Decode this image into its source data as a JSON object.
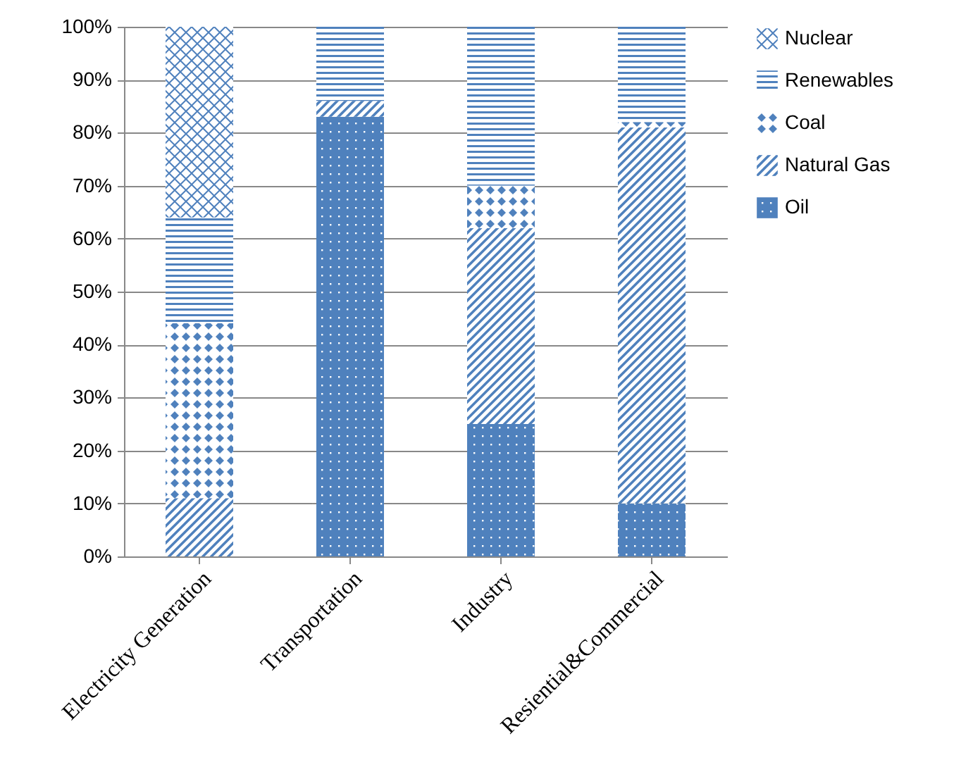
{
  "chart_data": {
    "type": "bar",
    "stacked": true,
    "categories": [
      "Electricity Generation",
      "Transportation",
      "Industry",
      "Resiential&Commercial"
    ],
    "series": [
      {
        "name": "Oil",
        "color": "#4f81bd",
        "values": [
          0,
          83,
          25,
          10
        ]
      },
      {
        "name": "Natural Gas",
        "color": "#4f81bd",
        "values": [
          11,
          3,
          37,
          71
        ]
      },
      {
        "name": "Coal",
        "color": "#4f81bd",
        "values": [
          33,
          0,
          8,
          1
        ]
      },
      {
        "name": "Renewables",
        "color": "#4f81bd",
        "values": [
          20,
          14,
          30,
          18
        ]
      },
      {
        "name": "Nuclear",
        "color": "#4f81bd",
        "values": [
          36,
          0,
          0,
          0
        ]
      }
    ],
    "ylim": [
      0,
      100
    ],
    "yticks": [
      {
        "value": 0,
        "label": "0%"
      },
      {
        "value": 10,
        "label": "10%"
      },
      {
        "value": 20,
        "label": "20%"
      },
      {
        "value": 30,
        "label": "30%"
      },
      {
        "value": 40,
        "label": "40%"
      },
      {
        "value": 50,
        "label": "50%"
      },
      {
        "value": 60,
        "label": "60%"
      },
      {
        "value": 70,
        "label": "70%"
      },
      {
        "value": 80,
        "label": "80%"
      },
      {
        "value": 90,
        "label": "90%"
      },
      {
        "value": 100,
        "label": "100%"
      }
    ],
    "grid": "y",
    "legend": "right"
  }
}
